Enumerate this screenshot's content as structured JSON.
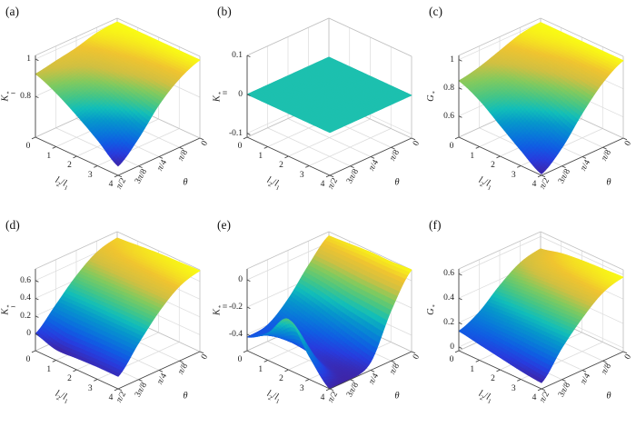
{
  "figure": {
    "background": "#ffffff",
    "grid_color": "#dcdcdc",
    "box_edge_color": "#c2c2c2",
    "axis_color": "#444444",
    "text_color": "#1c1c1c",
    "flat_surface_color": "#26b3a7"
  },
  "labels": {
    "xlabel_parts": {
      "base1": "l",
      "sub1": "2",
      "slash": "/",
      "base2": "l",
      "sub2": "1"
    },
    "ylabel": "θ"
  },
  "colormap": {
    "name": "parula",
    "stops": [
      [
        0.0,
        62,
        38,
        168
      ],
      [
        0.1,
        40,
        60,
        222
      ],
      [
        0.2,
        17,
        92,
        227
      ],
      [
        0.3,
        9,
        123,
        217
      ],
      [
        0.4,
        7,
        152,
        203
      ],
      [
        0.5,
        18,
        190,
        185
      ],
      [
        0.6,
        71,
        198,
        133
      ],
      [
        0.7,
        129,
        202,
        95
      ],
      [
        0.8,
        208,
        192,
        66
      ],
      [
        0.9,
        240,
        196,
        48
      ],
      [
        1.0,
        249,
        251,
        21
      ]
    ]
  },
  "chart_data": [
    {
      "type": "surface",
      "id": "a",
      "caption": "(a)",
      "xlabel": "l2/l1",
      "ylabel": "θ",
      "zlabel": "K_I^*",
      "zlabel_parts": {
        "base": "K",
        "sup": "*",
        "sub": "I"
      },
      "x": [
        0,
        1,
        2,
        3,
        4
      ],
      "theta": [
        "0",
        "π/8",
        "π/4",
        "3π/8",
        "π/2"
      ],
      "x_tick_labels": [
        "0",
        "1",
        "2",
        "3",
        "4"
      ],
      "zlim": [
        0.58,
        1.02
      ],
      "zticks": [
        0.8,
        1
      ],
      "ztick_labels": [
        "0.8",
        "1"
      ],
      "z": [
        [
          1.0,
          1.0,
          1.0,
          1.0,
          1.0
        ],
        [
          0.99,
          0.98,
          0.97,
          0.96,
          0.95
        ],
        [
          0.96,
          0.94,
          0.92,
          0.89,
          0.86
        ],
        [
          0.94,
          0.9,
          0.85,
          0.79,
          0.73
        ],
        [
          0.92,
          0.87,
          0.8,
          0.72,
          0.63
        ]
      ]
    },
    {
      "type": "surface",
      "id": "b",
      "caption": "(b)",
      "xlabel": "l2/l1",
      "ylabel": "θ",
      "zlabel": "K_II^*",
      "zlabel_parts": {
        "base": "K",
        "sup": "*",
        "sub": "II"
      },
      "x": [
        0,
        1,
        2,
        3,
        4
      ],
      "theta": [
        "0",
        "π/8",
        "π/4",
        "3π/8",
        "π/2"
      ],
      "x_tick_labels": [
        "0",
        "1",
        "2",
        "3",
        "4"
      ],
      "zlim": [
        -0.11,
        0.1
      ],
      "zticks": [
        -0.1,
        0,
        0.1
      ],
      "ztick_labels": [
        "-0.1",
        "0",
        "0.1"
      ],
      "z": [
        [
          0,
          0,
          0,
          0,
          0
        ],
        [
          0,
          0,
          0,
          0,
          0
        ],
        [
          0,
          0,
          0,
          0,
          0
        ],
        [
          0,
          0,
          0,
          0,
          0
        ],
        [
          0,
          0,
          0,
          0,
          0
        ]
      ]
    },
    {
      "type": "surface",
      "id": "c",
      "caption": "(c)",
      "xlabel": "l2/l1",
      "ylabel": "θ",
      "zlabel": "G^*",
      "zlabel_parts": {
        "base": "G",
        "sup": "*",
        "sub": ""
      },
      "x": [
        0,
        1,
        2,
        3,
        4
      ],
      "theta": [
        "0",
        "π/8",
        "π/4",
        "3π/8",
        "π/2"
      ],
      "x_tick_labels": [
        "0",
        "1",
        "2",
        "3",
        "4"
      ],
      "zlim": [
        0.45,
        1.03
      ],
      "zticks": [
        0.6,
        0.8,
        1
      ],
      "ztick_labels": [
        "0.6",
        "0.8",
        "1"
      ],
      "z": [
        [
          1.0,
          1.0,
          1.0,
          1.0,
          1.0
        ],
        [
          0.98,
          0.97,
          0.95,
          0.93,
          0.91
        ],
        [
          0.93,
          0.9,
          0.86,
          0.81,
          0.76
        ],
        [
          0.88,
          0.82,
          0.75,
          0.66,
          0.58
        ],
        [
          0.85,
          0.78,
          0.67,
          0.56,
          0.46
        ]
      ]
    },
    {
      "type": "surface",
      "id": "d",
      "caption": "(d)",
      "xlabel": "l2/l1",
      "ylabel": "θ",
      "zlabel": "K_I^*",
      "zlabel_parts": {
        "base": "K",
        "sup": "*",
        "sub": "I"
      },
      "x": [
        0,
        1,
        2,
        3,
        4
      ],
      "theta": [
        "0",
        "π/8",
        "π/4",
        "3π/8",
        "π/2"
      ],
      "x_tick_labels": [
        "0",
        "1",
        "2",
        "3",
        "4"
      ],
      "zlim": [
        -0.19,
        0.73
      ],
      "zticks": [
        0,
        0.2,
        0.4,
        0.6
      ],
      "ztick_labels": [
        "0",
        "0.2",
        "0.4",
        "0.6"
      ],
      "z": [
        [
          0.66,
          0.68,
          0.7,
          0.71,
          0.72
        ],
        [
          0.6,
          0.62,
          0.63,
          0.64,
          0.65
        ],
        [
          0.44,
          0.45,
          0.46,
          0.47,
          0.47
        ],
        [
          0.22,
          0.22,
          0.22,
          0.22,
          0.22
        ],
        [
          0.0,
          -0.07,
          -0.06,
          -0.05,
          -0.05
        ]
      ]
    },
    {
      "type": "surface",
      "id": "e",
      "caption": "(e)",
      "xlabel": "l2/l1",
      "ylabel": "θ",
      "zlabel": "K_II^*",
      "zlabel_parts": {
        "base": "K",
        "sup": "*",
        "sub": "II"
      },
      "x": [
        0,
        1,
        2,
        3,
        4
      ],
      "theta": [
        "0",
        "π/8",
        "π/4",
        "3π/8",
        "π/2"
      ],
      "x_tick_labels": [
        "0",
        "1",
        "2",
        "3",
        "4"
      ],
      "zlim": [
        -0.52,
        0.08
      ],
      "zticks": [
        -0.4,
        -0.2,
        0
      ],
      "ztick_labels": [
        "-0.4",
        "-0.2",
        "0"
      ],
      "z": [
        [
          0.05,
          0.06,
          0.07,
          0.07,
          0.08
        ],
        [
          -0.1,
          -0.11,
          -0.13,
          -0.14,
          -0.15
        ],
        [
          -0.28,
          -0.32,
          -0.37,
          -0.42,
          -0.46
        ],
        [
          -0.4,
          -0.43,
          -0.46,
          -0.5,
          -0.52
        ],
        [
          -0.42,
          -0.32,
          -0.15,
          -0.35,
          -0.52
        ]
      ]
    },
    {
      "type": "surface",
      "id": "f",
      "caption": "(f)",
      "xlabel": "l2/l1",
      "ylabel": "θ",
      "zlabel": "G^*",
      "zlabel_parts": {
        "base": "G",
        "sup": "*",
        "sub": ""
      },
      "x": [
        0,
        1,
        2,
        3,
        4
      ],
      "theta": [
        "0",
        "π/8",
        "π/4",
        "3π/8",
        "π/2"
      ],
      "x_tick_labels": [
        "0",
        "1",
        "2",
        "3",
        "4"
      ],
      "zlim": [
        -0.03,
        0.64
      ],
      "zticks": [
        0,
        0.2,
        0.4,
        0.6
      ],
      "ztick_labels": [
        "0",
        "0.2",
        "0.4",
        "0.6"
      ],
      "z": [
        [
          0.5,
          0.54,
          0.56,
          0.57,
          0.58
        ],
        [
          0.46,
          0.49,
          0.51,
          0.52,
          0.53
        ],
        [
          0.35,
          0.37,
          0.38,
          0.39,
          0.4
        ],
        [
          0.21,
          0.22,
          0.23,
          0.23,
          0.23
        ],
        [
          0.13,
          0.1,
          0.07,
          0.04,
          0.02
        ]
      ]
    }
  ]
}
